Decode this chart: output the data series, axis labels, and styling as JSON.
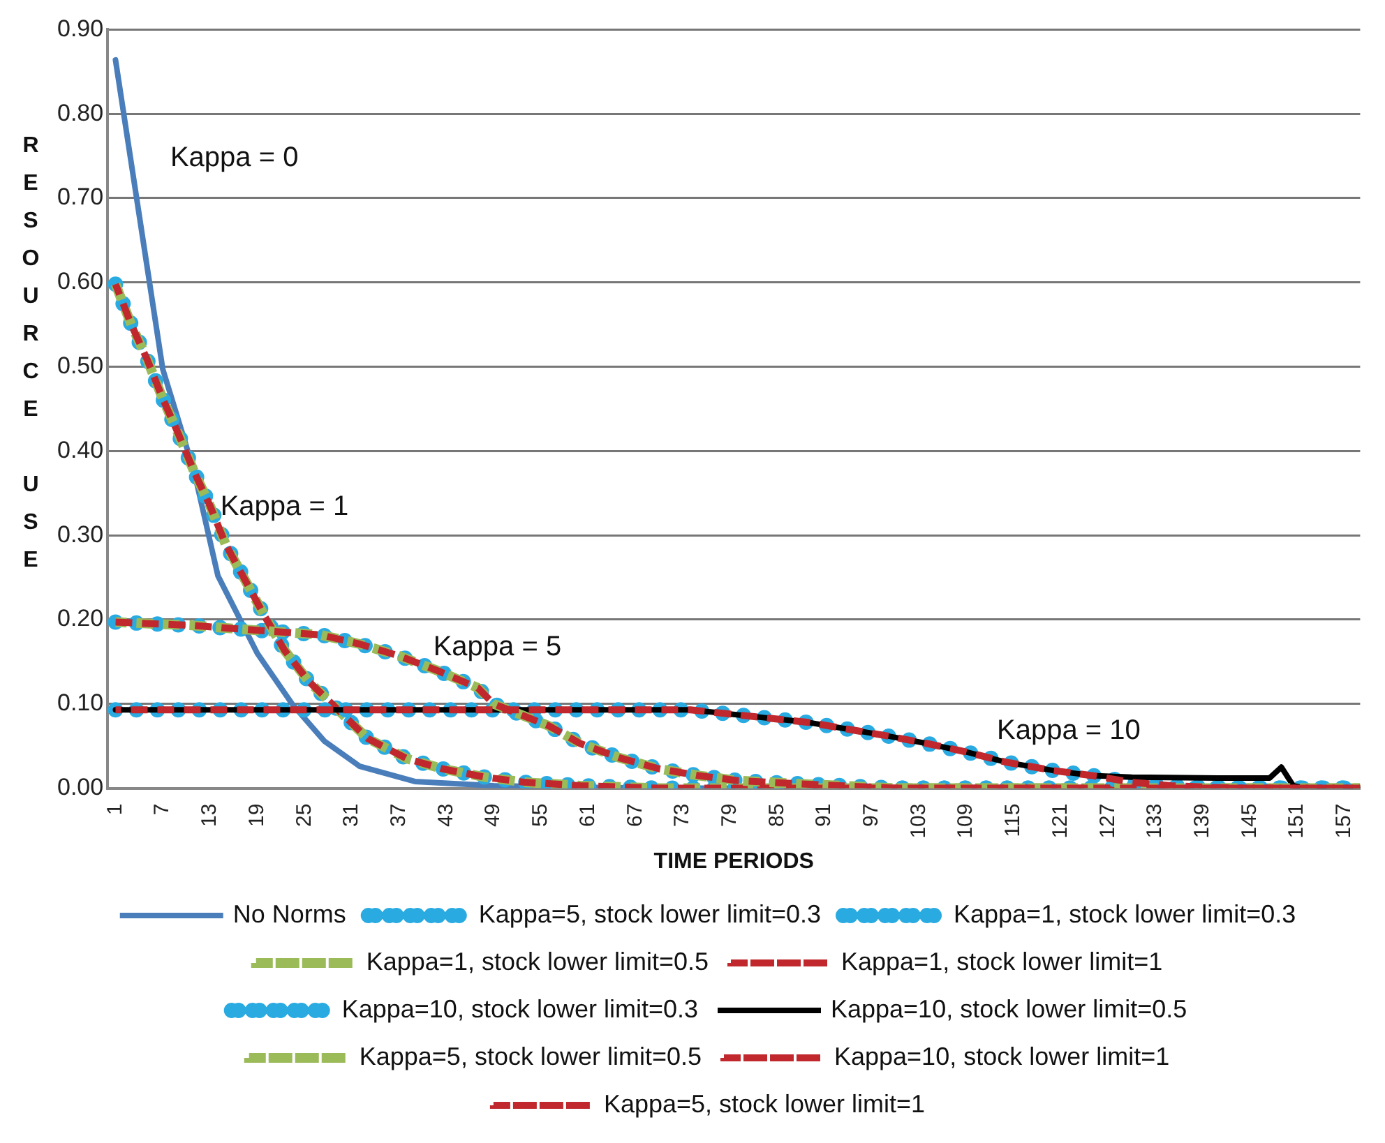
{
  "chart_data": {
    "type": "line",
    "xlabel": "TIME PERIODS",
    "ylabel": "RESOURCE USE",
    "xlim": [
      0,
      159
    ],
    "xticks": [
      1,
      7,
      13,
      19,
      25,
      31,
      37,
      43,
      49,
      55,
      61,
      67,
      73,
      79,
      85,
      91,
      97,
      103,
      109,
      115,
      121,
      127,
      133,
      139,
      145,
      151,
      157
    ],
    "ylim": [
      0,
      0.9
    ],
    "yticks": [
      {
        "value": 0,
        "label": "0.00"
      },
      {
        "value": 0.1,
        "label": "0.10"
      },
      {
        "value": 0.2,
        "label": "0.20"
      },
      {
        "value": 0.3,
        "label": "0.30"
      },
      {
        "value": 0.4,
        "label": "0.40"
      },
      {
        "value": 0.5,
        "label": "0.50"
      },
      {
        "value": 0.6,
        "label": "0.60"
      },
      {
        "value": 0.7,
        "label": "0.70"
      },
      {
        "value": 0.8,
        "label": "0.80"
      },
      {
        "value": 0.9,
        "label": "0.90"
      }
    ],
    "grid": "y",
    "legend": "bottom",
    "marker": "none",
    "annotations": [
      "Kappa = 0",
      "Kappa = 1",
      "Kappa = 5",
      "Kappa = 10"
    ],
    "series": [
      {
        "name": "No Norms",
        "color": "#4a7ebb",
        "line_style": "solid",
        "x": [
          1,
          7,
          11,
          14,
          19,
          23.5,
          27.5,
          32,
          39,
          49,
          60,
          70,
          159
        ],
        "values": [
          0.864,
          0.497,
          0.375,
          0.252,
          0.16,
          0.099,
          0.056,
          0.026,
          0.008,
          0.003,
          0.001,
          0,
          0
        ]
      },
      {
        "name": "Kappa=5, stock lower limit=0.3",
        "color": "#29abe2",
        "line_style": "dotted",
        "x": [
          1,
          11,
          15,
          27,
          32,
          37,
          42,
          47,
          49,
          56,
          60,
          65,
          70,
          75,
          80,
          86,
          100,
          159
        ],
        "values": [
          0.197,
          0.193,
          0.19,
          0.182,
          0.171,
          0.157,
          0.139,
          0.119,
          0.1,
          0.074,
          0.053,
          0.036,
          0.023,
          0.015,
          0.009,
          0.006,
          0,
          0
        ]
      },
      {
        "name": "Kappa=1, stock lower limit=0.3",
        "color": "#29abe2",
        "line_style": "dotted",
        "x": [
          1,
          3,
          5,
          7,
          9,
          11,
          13,
          15,
          17.5,
          20,
          22.5,
          25.5,
          33,
          38,
          42.5,
          48,
          53,
          60,
          70,
          159
        ],
        "values": [
          0.598,
          0.55,
          0.509,
          0.462,
          0.42,
          0.375,
          0.335,
          0.289,
          0.246,
          0.203,
          0.163,
          0.127,
          0.059,
          0.035,
          0.023,
          0.013,
          0.007,
          0.003,
          0,
          0
        ]
      },
      {
        "name": "Kappa=1, stock lower limit=0.5",
        "color": "#9bbb59",
        "line_style": "dashed",
        "x": [
          1,
          3,
          5,
          7,
          9,
          11,
          13,
          15,
          17.5,
          20,
          22.5,
          25.5,
          33,
          38,
          42.5,
          48,
          53,
          60,
          70,
          159
        ],
        "values": [
          0.598,
          0.55,
          0.509,
          0.462,
          0.42,
          0.375,
          0.335,
          0.289,
          0.246,
          0.203,
          0.163,
          0.127,
          0.059,
          0.035,
          0.023,
          0.013,
          0.007,
          0.003,
          0,
          0
        ]
      },
      {
        "name": "Kappa=1, stock lower limit=1",
        "color": "#c0282d",
        "line_style": "dashed",
        "x": [
          1,
          3,
          5,
          7,
          9,
          11,
          13,
          15,
          17.5,
          20,
          22.5,
          25.5,
          33,
          38,
          42.5,
          48,
          53,
          60,
          70,
          159
        ],
        "values": [
          0.598,
          0.55,
          0.509,
          0.462,
          0.42,
          0.375,
          0.335,
          0.289,
          0.246,
          0.203,
          0.163,
          0.127,
          0.059,
          0.035,
          0.023,
          0.013,
          0.007,
          0.003,
          0,
          0
        ]
      },
      {
        "name": "Kappa=10, stock lower limit=0.3",
        "color": "#29abe2",
        "line_style": "dotted",
        "x": [
          1,
          74,
          79,
          84,
          89,
          94,
          99,
          104,
          109,
          114,
          120,
          125,
          130,
          135,
          140,
          145,
          159
        ],
        "values": [
          0.093,
          0.093,
          0.088,
          0.083,
          0.078,
          0.07,
          0.062,
          0.053,
          0.043,
          0.031,
          0.021,
          0.015,
          0.007,
          0.003,
          0.001,
          0,
          0
        ]
      },
      {
        "name": "Kappa=10, stock lower limit=0.5",
        "color": "#000000",
        "line_style": "solid",
        "x": [
          1,
          74,
          79,
          84,
          89,
          94,
          99,
          104,
          109,
          114,
          120,
          125,
          130,
          141,
          147.5,
          149,
          150.5,
          152,
          159
        ],
        "values": [
          0.093,
          0.093,
          0.088,
          0.083,
          0.078,
          0.07,
          0.062,
          0.053,
          0.043,
          0.031,
          0.021,
          0.015,
          0.013,
          0.012,
          0.012,
          0.025,
          0.003,
          0,
          0
        ]
      },
      {
        "name": "Kappa=5, stock lower limit=0.5",
        "color": "#9bbb59",
        "line_style": "dashed",
        "x": [
          1,
          11,
          15,
          27,
          32,
          37,
          42,
          47,
          49,
          56,
          60,
          65,
          70,
          75,
          80,
          86,
          100,
          159
        ],
        "values": [
          0.197,
          0.193,
          0.19,
          0.182,
          0.171,
          0.157,
          0.139,
          0.119,
          0.1,
          0.074,
          0.053,
          0.036,
          0.023,
          0.015,
          0.009,
          0.006,
          0,
          0
        ]
      },
      {
        "name": "Kappa=10, stock lower limit=1",
        "color": "#c0282d",
        "line_style": "dashed",
        "x": [
          1,
          74,
          79,
          84,
          89,
          94,
          99,
          104,
          109,
          114,
          120,
          125,
          130,
          135,
          140,
          145,
          159
        ],
        "values": [
          0.093,
          0.093,
          0.088,
          0.083,
          0.078,
          0.07,
          0.062,
          0.053,
          0.043,
          0.031,
          0.021,
          0.015,
          0.007,
          0.003,
          0.001,
          0,
          0
        ]
      },
      {
        "name": "Kappa=5, stock lower limit=1",
        "color": "#c0282d",
        "line_style": "dashed",
        "x": [
          1,
          11,
          15,
          27,
          32,
          37,
          42,
          47,
          49,
          56,
          60,
          65,
          70,
          75,
          80,
          86,
          100,
          159
        ],
        "values": [
          0.197,
          0.193,
          0.19,
          0.182,
          0.171,
          0.157,
          0.139,
          0.119,
          0.1,
          0.074,
          0.053,
          0.036,
          0.023,
          0.015,
          0.009,
          0.006,
          0,
          0
        ]
      }
    ]
  }
}
